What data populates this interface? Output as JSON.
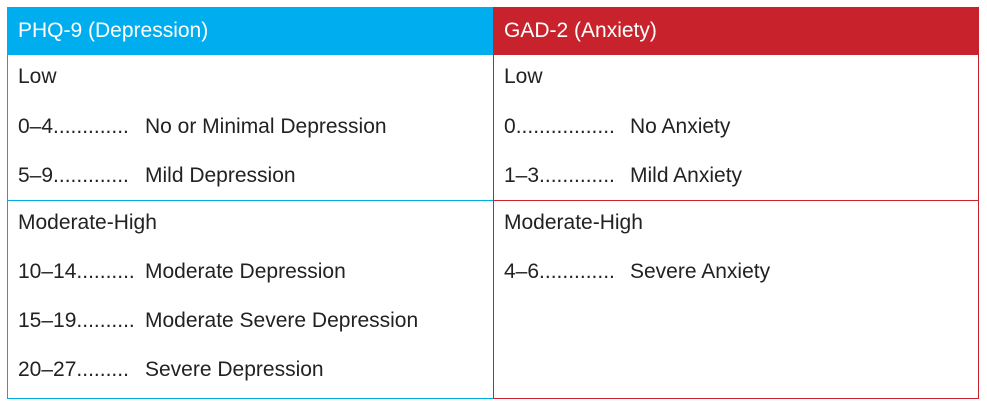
{
  "phq": {
    "title": "PHQ-9 (Depression)",
    "low_title": "Low",
    "low_rows": [
      {
        "range": "0–4",
        "dots": ".............",
        "label": "No or Minimal Depression"
      },
      {
        "range": "5–9",
        "dots": ".............",
        "label": "Mild Depression"
      }
    ],
    "high_title": "Moderate-High",
    "high_rows": [
      {
        "range": "10–14",
        "dots": "..........",
        "label": "Moderate Depression"
      },
      {
        "range": "15–19",
        "dots": "..........",
        "label": "Moderate Severe Depression"
      },
      {
        "range": "20–27",
        "dots": ".........",
        "label": "Severe Depression"
      }
    ]
  },
  "gad": {
    "title": "GAD-2 (Anxiety)",
    "low_title": "Low",
    "low_rows": [
      {
        "range": "0",
        "dots": ".................",
        "label": "No Anxiety"
      },
      {
        "range": "1–3",
        "dots": ".............",
        "label": "Mild Anxiety"
      }
    ],
    "high_title": "Moderate-High",
    "high_rows": [
      {
        "range": "4–6",
        "dots": ".............",
        "label": "Severe Anxiety"
      }
    ]
  },
  "colors": {
    "phq_header": "#00aeef",
    "gad_header": "#c8232c"
  }
}
